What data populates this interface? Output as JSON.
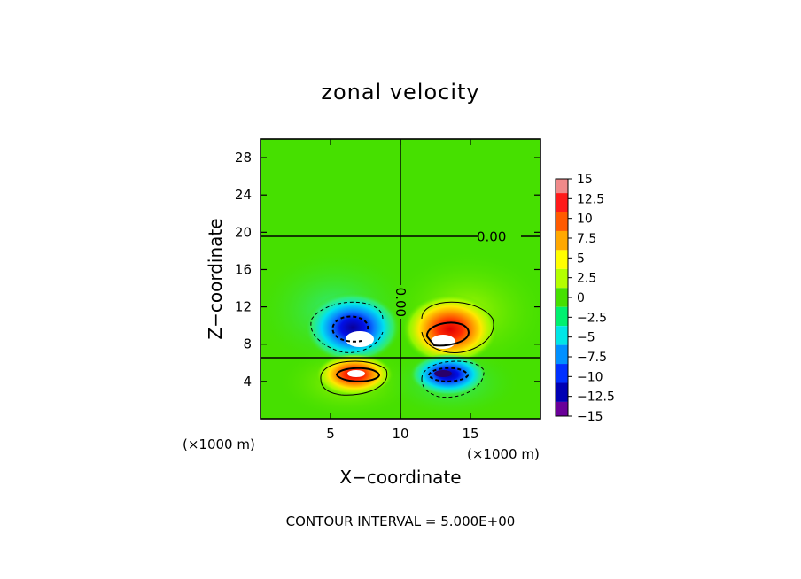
{
  "chart_data": {
    "type": "heatmap",
    "title": "zonal velocity",
    "xlabel": "X−coordinate",
    "ylabel": "Z−coordinate",
    "x_unit_left": "(×1000 m)",
    "x_unit_right": "(×1000 m)",
    "xlim": [
      0,
      20
    ],
    "ylim": [
      0,
      30
    ],
    "x_ticks": [
      5,
      10,
      15
    ],
    "y_ticks": [
      4,
      8,
      12,
      16,
      20,
      24,
      28
    ],
    "footer": "CONTOUR INTERVAL = 5.000E+00",
    "contour_labels": [
      {
        "text": "0.00",
        "x": 16.5,
        "y": 19.5,
        "rotation": 0
      },
      {
        "text": "0.00",
        "x": 10.0,
        "y": 12.5,
        "rotation": 90
      }
    ],
    "colorbar": {
      "labels": [
        "15",
        "12.5",
        "10",
        "7.5",
        "5",
        "2.5",
        "0",
        "−2.5",
        "−5",
        "−7.5",
        "−10",
        "−12.5",
        "−15"
      ],
      "levels": [
        15,
        12.5,
        10,
        7.5,
        5,
        2.5,
        0,
        -2.5,
        -5,
        -7.5,
        -10,
        -12.5,
        -15
      ],
      "colors": [
        "#f08a8a",
        "#ff1a1a",
        "#ff5a00",
        "#ffa800",
        "#ffff00",
        "#b4ff00",
        "#46e000",
        "#00f070",
        "#00e6e6",
        "#0090ff",
        "#0030ff",
        "#0000b4",
        "#6a0099"
      ]
    },
    "features": [
      {
        "sign": "negative",
        "x": 6.8,
        "y": 9.8,
        "peak": -13
      },
      {
        "sign": "positive",
        "x": 13.2,
        "y": 9.6,
        "peak": 13
      },
      {
        "sign": "positive",
        "x": 7.0,
        "y": 4.9,
        "peak": 13
      },
      {
        "sign": "negative",
        "x": 13.2,
        "y": 4.9,
        "peak": -13
      }
    ],
    "zero_lines": {
      "horizontal": [
        19.5,
        6.7
      ],
      "vertical": [
        10
      ]
    }
  }
}
